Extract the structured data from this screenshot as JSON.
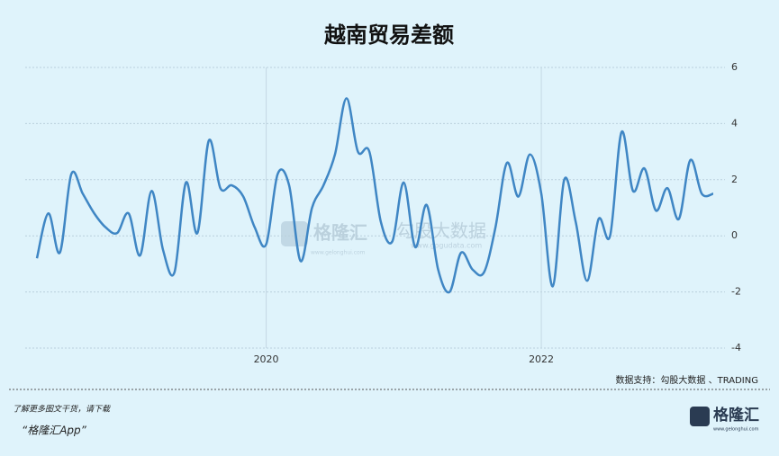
{
  "chart_data": {
    "type": "line",
    "title": "越南贸易差额",
    "categories": [
      null,
      null,
      null,
      null,
      null,
      null,
      null,
      null,
      null,
      null,
      null,
      null,
      null,
      null,
      null,
      null,
      null,
      null,
      null,
      null,
      "2020",
      null,
      null,
      null,
      null,
      null,
      null,
      null,
      null,
      null,
      null,
      null,
      null,
      null,
      null,
      null,
      null,
      null,
      null,
      null,
      null,
      null,
      null,
      null,
      "2022",
      null,
      null,
      null,
      null,
      null,
      null,
      null,
      null,
      null,
      null,
      null,
      null,
      null,
      null,
      null
    ],
    "values": [
      -0.8,
      0.8,
      -0.6,
      2.2,
      1.5,
      0.8,
      0.3,
      0.1,
      0.8,
      -0.7,
      1.6,
      -0.5,
      -1.3,
      1.9,
      0.1,
      3.4,
      1.7,
      1.8,
      1.4,
      0.3,
      -0.3,
      2.2,
      1.8,
      -0.9,
      1.0,
      1.8,
      2.9,
      4.9,
      3.0,
      3.0,
      0.5,
      -0.2,
      1.9,
      -0.4,
      1.1,
      -1.2,
      -2.0,
      -0.6,
      -1.2,
      -1.3,
      0.3,
      2.6,
      1.4,
      2.9,
      1.5,
      -1.8,
      2.0,
      0.5,
      -1.6,
      0.6,
      0.0,
      3.7,
      1.6,
      2.4,
      0.9,
      1.7,
      0.6,
      2.7,
      1.5,
      1.5
    ],
    "color": "#3f86c4",
    "ylim": [
      -4,
      6
    ],
    "yticks": [
      -4,
      -2,
      0,
      2,
      4,
      6
    ],
    "grid": true,
    "source": "数据支持：勾股大数据 、TRADING"
  },
  "watermark": {
    "brand": "格隆汇",
    "brand_url": "www.gelonghui.com",
    "data": "勾股大数据",
    "data_url": "www.gogudata.com"
  },
  "footer": {
    "line1": "了解更多图文干货，请下载",
    "line2": "“格隆汇App”",
    "logo": "格隆汇",
    "logo_url": "www.gelonghui.com"
  }
}
